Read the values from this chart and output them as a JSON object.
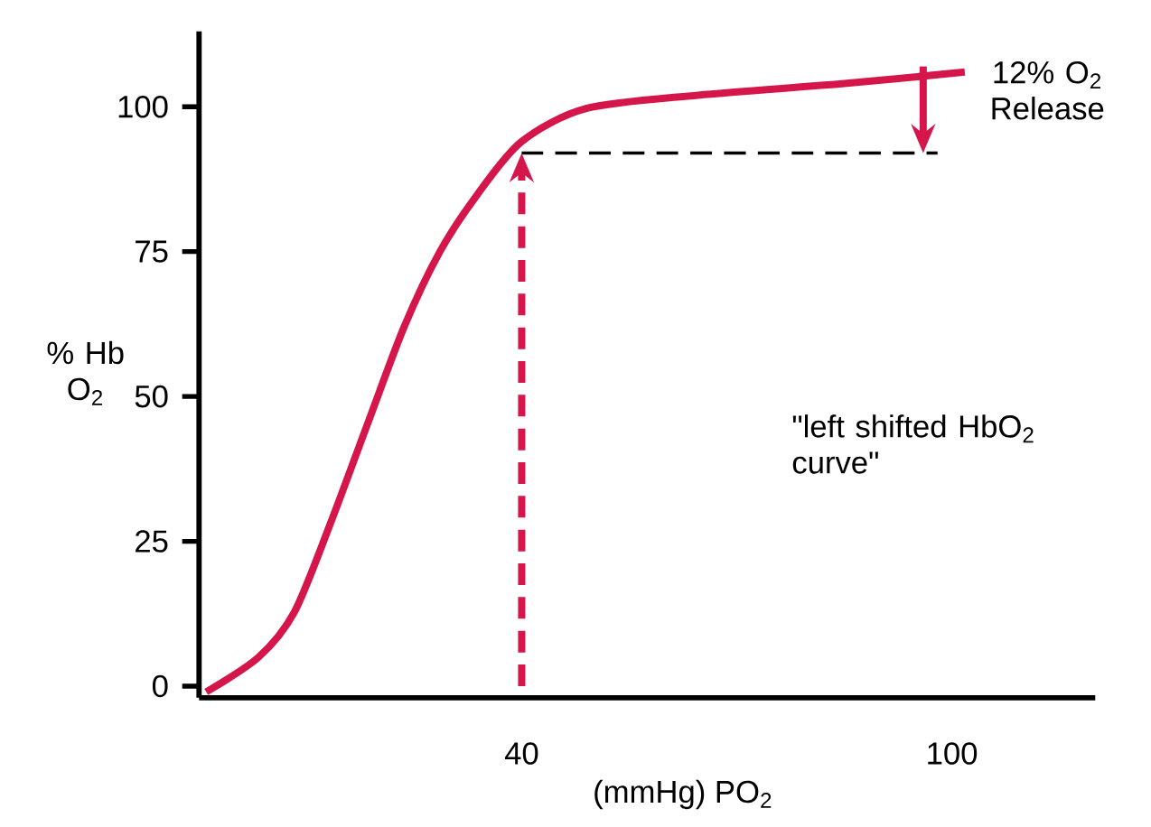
{
  "chart_data": {
    "type": "line",
    "xlabel": "(mmHg) PO$_{2}$",
    "ylabel": "% Hb O$_{2}$",
    "xlim": [
      -5,
      120
    ],
    "ylim": [
      -2,
      113
    ],
    "xticks": [
      40,
      100
    ],
    "yticks": [
      0,
      25,
      50,
      75,
      100
    ],
    "grid": false,
    "marker": "none",
    "series": [
      {
        "color": "#d4164a",
        "line_style": "solid",
        "x": [
          -4,
          3.3,
          8.3,
          13.3,
          18.6,
          23.6,
          28.6,
          33.9,
          40,
          49,
          64.6,
          85,
          101.8
        ],
        "values": [
          -1,
          5,
          12.8,
          28,
          45.6,
          62,
          75,
          85,
          94,
          99.7,
          102,
          104,
          106
        ]
      },
      {
        "color": "#000000",
        "line_style": "dashed",
        "x": [
          40,
          98
        ],
        "values": [
          92,
          92
        ]
      }
    ],
    "annotations": [
      {
        "text": "12% O$_{2}$ Release",
        "x": 96,
        "y": 92
      },
      "\"left shifted HbO$_{2}$ curve\""
    ]
  }
}
